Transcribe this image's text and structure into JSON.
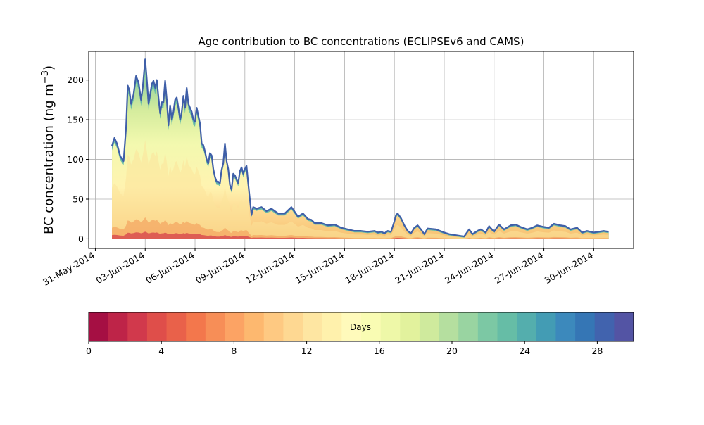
{
  "chart_data": {
    "type": "area",
    "title": "Age contribution to BC concentrations (ECLIPSEv6 and CAMS)",
    "ylabel_main": "BC concentration (ng m",
    "ylabel_sup": "−3",
    "ylabel_close": ")",
    "xlabel": "",
    "ylim": [
      -12,
      236
    ],
    "xlim": [
      -0.4,
      32.4
    ],
    "y_ticks": [
      0,
      50,
      100,
      150,
      200
    ],
    "x_ticks": [
      {
        "day": 0,
        "label": "31-May-2014"
      },
      {
        "day": 3,
        "label": "03-Jun-2014"
      },
      {
        "day": 6,
        "label": "06-Jun-2014"
      },
      {
        "day": 9,
        "label": "09-Jun-2014"
      },
      {
        "day": 12,
        "label": "12-Jun-2014"
      },
      {
        "day": 15,
        "label": "15-Jun-2014"
      },
      {
        "day": 18,
        "label": "18-Jun-2014"
      },
      {
        "day": 21,
        "label": "21-Jun-2014"
      },
      {
        "day": 24,
        "label": "24-Jun-2014"
      },
      {
        "day": 27,
        "label": "27-Jun-2014"
      },
      {
        "day": 30,
        "label": "30-Jun-2014"
      }
    ],
    "grid": true,
    "total_series": {
      "x": [
        1.0,
        1.15,
        1.3,
        1.5,
        1.7,
        1.85,
        1.95,
        2.05,
        2.15,
        2.3,
        2.45,
        2.6,
        2.75,
        2.85,
        2.95,
        3.0,
        3.1,
        3.2,
        3.3,
        3.4,
        3.5,
        3.6,
        3.7,
        3.8,
        3.9,
        4.0,
        4.1,
        4.2,
        4.3,
        4.4,
        4.5,
        4.6,
        4.7,
        4.8,
        4.9,
        5.0,
        5.1,
        5.2,
        5.3,
        5.4,
        5.5,
        5.6,
        5.7,
        5.8,
        5.9,
        6.0,
        6.1,
        6.2,
        6.3,
        6.4,
        6.5,
        6.6,
        6.7,
        6.8,
        6.9,
        7.0,
        7.1,
        7.2,
        7.3,
        7.4,
        7.5,
        7.6,
        7.7,
        7.8,
        7.9,
        8.0,
        8.1,
        8.2,
        8.3,
        8.4,
        8.5,
        8.6,
        8.7,
        8.8,
        8.9,
        9.0,
        9.1,
        9.2,
        9.3,
        9.4,
        9.5,
        9.7,
        10.0,
        10.3,
        10.6,
        11.0,
        11.4,
        11.8,
        12.0,
        12.2,
        12.5,
        12.8,
        13.0,
        13.2,
        13.6,
        14.0,
        14.4,
        14.8,
        15.2,
        15.6,
        16.0,
        16.4,
        16.8,
        17.0,
        17.2,
        17.4,
        17.6,
        17.8,
        18.0,
        18.1,
        18.2,
        18.4,
        18.6,
        18.8,
        19.0,
        19.2,
        19.4,
        19.6,
        19.8,
        20.0,
        20.5,
        21.0,
        21.3,
        21.6,
        21.9,
        22.2,
        22.5,
        22.7,
        23.0,
        23.2,
        23.5,
        23.7,
        24.0,
        24.3,
        24.6,
        25.0,
        25.3,
        25.6,
        26.0,
        26.3,
        26.6,
        27.0,
        27.3,
        27.6,
        28.0,
        28.3,
        28.6,
        29.0,
        29.3,
        29.6,
        30.0,
        30.3,
        30.6,
        30.9
      ],
      "y": [
        117,
        127,
        120,
        104,
        98,
        140,
        193,
        187,
        170,
        182,
        205,
        197,
        175,
        190,
        214,
        226,
        200,
        170,
        182,
        195,
        199,
        190,
        200,
        178,
        158,
        172,
        172,
        199,
        175,
        143,
        168,
        150,
        160,
        175,
        178,
        165,
        150,
        160,
        180,
        165,
        190,
        170,
        165,
        160,
        150,
        148,
        165,
        155,
        145,
        120,
        118,
        110,
        100,
        95,
        108,
        105,
        88,
        78,
        72,
        72,
        70,
        87,
        95,
        120,
        98,
        88,
        68,
        62,
        82,
        80,
        75,
        70,
        85,
        90,
        82,
        88,
        92,
        70,
        50,
        30,
        40,
        38,
        40,
        35,
        38,
        32,
        32,
        40,
        34,
        28,
        32,
        25,
        24,
        20,
        20,
        17,
        18,
        14,
        12,
        10,
        10,
        9,
        10,
        8,
        9,
        7,
        10,
        9,
        22,
        30,
        32,
        26,
        17,
        10,
        7,
        14,
        17,
        12,
        6,
        13,
        12,
        8,
        6,
        5,
        4,
        3,
        12,
        6,
        10,
        12,
        8,
        16,
        9,
        18,
        12,
        17,
        18,
        15,
        12,
        14,
        17,
        15,
        14,
        19,
        17,
        16,
        12,
        14,
        8,
        10,
        8,
        9,
        10,
        9
      ]
    },
    "colorbar": {
      "label": "Days",
      "range": [
        0,
        30
      ],
      "ticks": [
        0,
        4,
        8,
        12,
        16,
        20,
        24,
        28
      ],
      "colors": [
        "#a50f43",
        "#be2448",
        "#d1394c",
        "#df4e4a",
        "#e9614a",
        "#f3774c",
        "#f78e57",
        "#fca364",
        "#fdb86f",
        "#fec982",
        "#fed892",
        "#fee6a2",
        "#fff1ac",
        "#fffabb",
        "#f9fcb3",
        "#eef8a8",
        "#e2f29d",
        "#cfea9d",
        "#b5df9f",
        "#99d4a1",
        "#7cc8a4",
        "#66bda6",
        "#54aead",
        "#439cb4",
        "#3c89bc",
        "#3576b5",
        "#4163ae",
        "#5354a4"
      ]
    }
  }
}
